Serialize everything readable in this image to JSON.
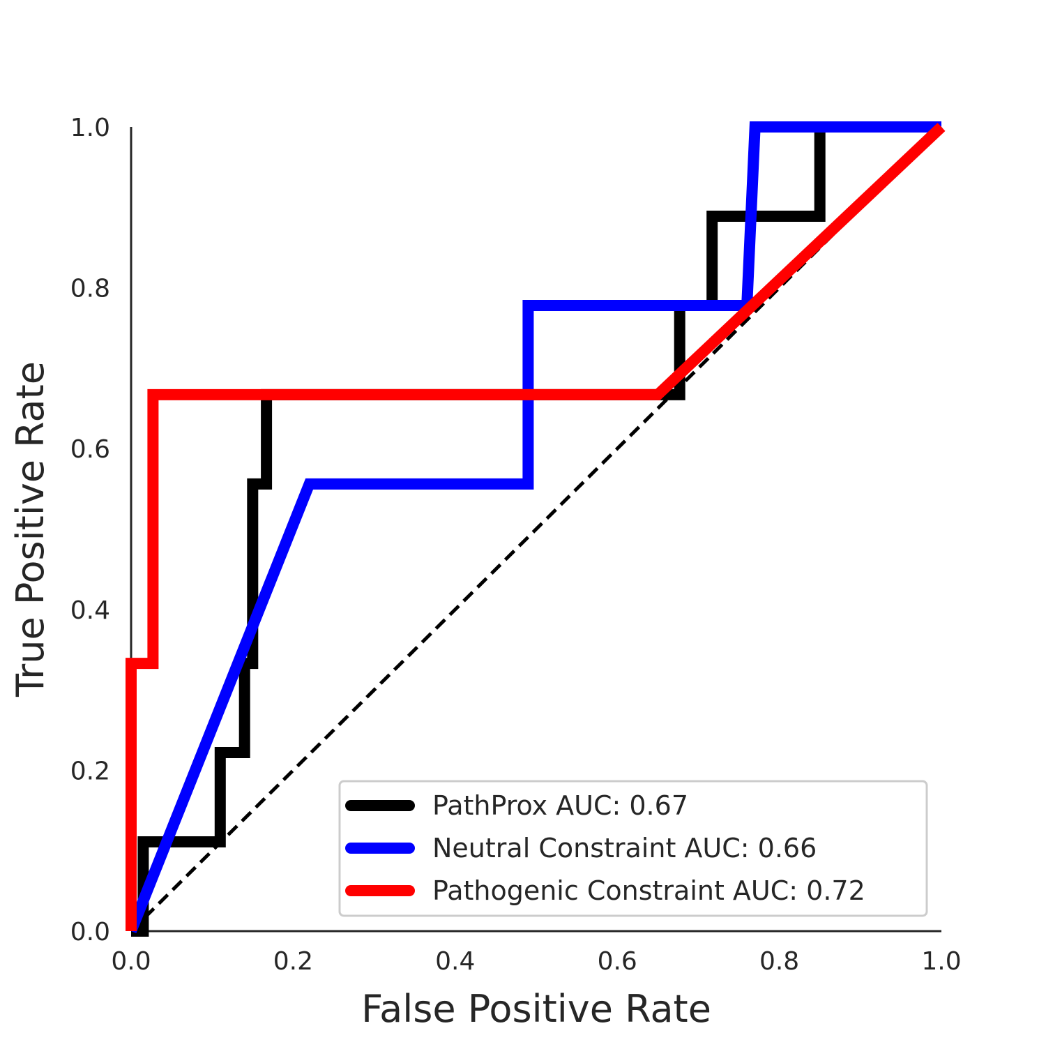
{
  "chart_data": {
    "type": "line",
    "title": "",
    "xlabel": "False Positive Rate",
    "ylabel": "True Positive Rate",
    "xlim": [
      0,
      1
    ],
    "ylim": [
      0,
      1
    ],
    "x_ticks": [
      "0.0",
      "0.2",
      "0.4",
      "0.6",
      "0.8",
      "1.0"
    ],
    "y_ticks": [
      "0.0",
      "0.2",
      "0.4",
      "0.6",
      "0.8",
      "1.0"
    ],
    "grid": false,
    "legend_position": "bottom-right",
    "reference_line": {
      "x": [
        0,
        1
      ],
      "y": [
        0,
        1
      ],
      "style": "dashed",
      "color": "#000000"
    },
    "series": [
      {
        "name": "PathProx AUC:  0.67",
        "color": "#000000",
        "points": [
          [
            0.0,
            0.0
          ],
          [
            0.015,
            0.0
          ],
          [
            0.015,
            0.111
          ],
          [
            0.11,
            0.111
          ],
          [
            0.11,
            0.222
          ],
          [
            0.14,
            0.222
          ],
          [
            0.14,
            0.333
          ],
          [
            0.15,
            0.333
          ],
          [
            0.15,
            0.556
          ],
          [
            0.167,
            0.556
          ],
          [
            0.167,
            0.667
          ],
          [
            0.677,
            0.667
          ],
          [
            0.677,
            0.778
          ],
          [
            0.717,
            0.778
          ],
          [
            0.717,
            0.889
          ],
          [
            0.85,
            0.889
          ],
          [
            0.85,
            1.0
          ],
          [
            1.0,
            1.0
          ]
        ]
      },
      {
        "name": "Neutral Constraint AUC:  0.66",
        "color": "#0000ff",
        "points": [
          [
            0.0,
            0.0
          ],
          [
            0.22,
            0.556
          ],
          [
            0.49,
            0.556
          ],
          [
            0.49,
            0.778
          ],
          [
            0.76,
            0.778
          ],
          [
            0.77,
            1.0
          ],
          [
            1.0,
            1.0
          ]
        ]
      },
      {
        "name": "Pathogenic Constraint AUC:  0.72",
        "color": "#ff0000",
        "points": [
          [
            0.0,
            0.0
          ],
          [
            0.0,
            0.333
          ],
          [
            0.027,
            0.333
          ],
          [
            0.027,
            0.667
          ],
          [
            0.65,
            0.667
          ],
          [
            1.0,
            1.0
          ]
        ]
      }
    ]
  }
}
